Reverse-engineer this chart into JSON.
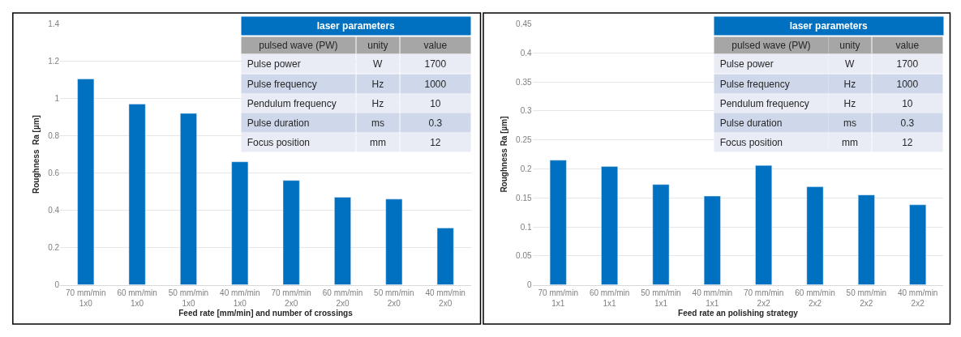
{
  "chart_data": [
    {
      "type": "bar",
      "xlabel": "Feed rate [mm/min] and number of crossings",
      "ylabel": "Roughness  Ra [µm]",
      "categories": [
        "70 mm/min\n1x0",
        "60 mm/min\n1x0",
        "50 mm/min\n1x0",
        "40 mm/min\n1x0",
        "70 mm/min\n2x0",
        "60 mm/min\n2x0",
        "50 mm/min\n2x0",
        "40 mm/min\n2x0"
      ],
      "values": [
        1.105,
        0.97,
        0.92,
        0.66,
        0.56,
        0.47,
        0.46,
        0.305
      ],
      "color": "#0070c0",
      "ylim": [
        0,
        1.4
      ],
      "yticks": [
        0,
        0.2,
        0.4,
        0.6,
        0.8,
        1,
        1.2,
        1.4
      ],
      "grid": "y"
    },
    {
      "type": "other",
      "title": "laser parameters",
      "annotations": [
        "pulsed wave (PW)",
        "unity",
        "value",
        "Pulse power",
        "W",
        "1700",
        "Pulse frequency",
        "Hz",
        "1000",
        "Pendulum frequency",
        "Hz",
        "10",
        "Pulse duration",
        "ms",
        "0.3",
        "Focus position",
        "mm",
        "12"
      ]
    },
    {
      "type": "bar",
      "xlabel": "Feed rate an polishing strategy",
      "ylabel": "Roughness Ra [µm]",
      "categories": [
        "70 mm/min\n1x1",
        "60 mm/min\n1x1",
        "50 mm/min\n1x1",
        "40 mm/min\n1x1",
        "70 mm/min\n2x2",
        "60 mm/min\n2x2",
        "50 mm/min\n2x2",
        "40 mm/min\n2x2"
      ],
      "values": [
        0.215,
        0.204,
        0.173,
        0.153,
        0.206,
        0.169,
        0.155,
        0.138
      ],
      "color": "#0070c0",
      "ylim": [
        0,
        0.45
      ],
      "yticks": [
        0,
        0.05,
        0.1,
        0.15,
        0.2,
        0.25,
        0.3,
        0.35,
        0.4,
        0.45
      ],
      "grid": "y"
    },
    {
      "type": "other",
      "title": "laser parameters",
      "annotations": [
        "pulsed wave (PW)",
        "unity",
        "value",
        "Pulse power",
        "W",
        "1700",
        "Pulse frequency",
        "Hz",
        "1000",
        "Pendulum frequency",
        "Hz",
        "10",
        "Pulse duration",
        "ms",
        "0.3",
        "Focus position",
        "mm",
        "12"
      ]
    }
  ]
}
